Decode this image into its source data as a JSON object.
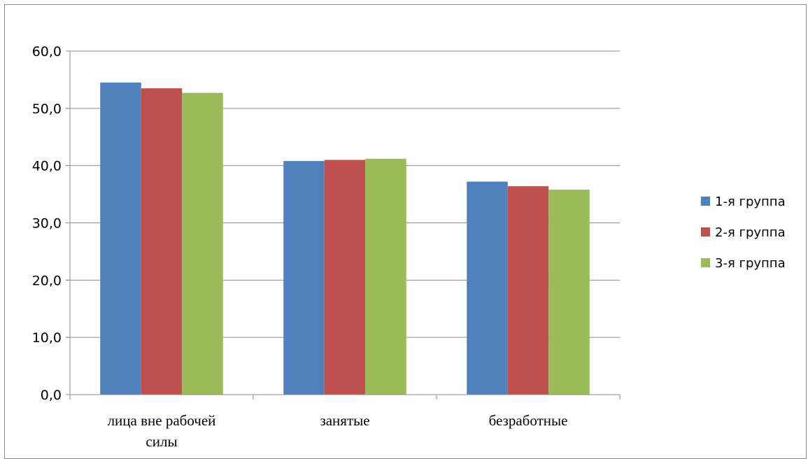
{
  "chart_data": {
    "type": "bar",
    "categories": [
      [
        "лица вне рабочей",
        "силы"
      ],
      [
        "занятые"
      ],
      [
        "безработные"
      ]
    ],
    "series": [
      {
        "name": "1-я группа",
        "color": "#4f81bd",
        "values": [
          54.5,
          40.8,
          37.2
        ]
      },
      {
        "name": "2-я группа",
        "color": "#c0504d",
        "values": [
          53.5,
          41.0,
          36.4
        ]
      },
      {
        "name": "3-я группа",
        "color": "#9bbb59",
        "values": [
          52.7,
          41.2,
          35.8
        ]
      }
    ],
    "ylim": [
      0,
      60
    ],
    "yticks": [
      "0,0",
      "10,0",
      "20,0",
      "30,0",
      "40,0",
      "50,0",
      "60,0"
    ],
    "grid": true,
    "legend_position": "right"
  }
}
